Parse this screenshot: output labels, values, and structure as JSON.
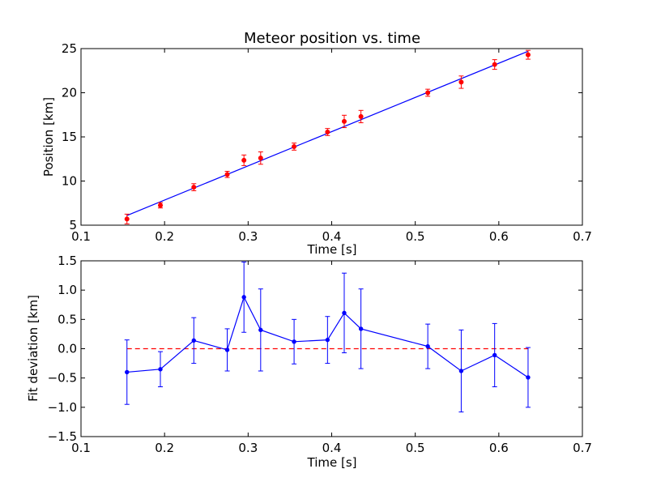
{
  "chart_data": [
    {
      "type": "scatter",
      "title": "Meteor position vs. time",
      "xlabel": "Time [s]",
      "ylabel": "Position [km]",
      "xlim": [
        0.1,
        0.7
      ],
      "ylim": [
        5,
        25
      ],
      "xticks": [
        "0.1",
        "0.2",
        "0.3",
        "0.4",
        "0.5",
        "0.6",
        "0.7"
      ],
      "yticks": [
        "5",
        "10",
        "15",
        "20",
        "25"
      ],
      "grid": false,
      "points": {
        "color": "#ff0000",
        "x": [
          0.155,
          0.195,
          0.235,
          0.275,
          0.295,
          0.315,
          0.355,
          0.395,
          0.415,
          0.435,
          0.515,
          0.555,
          0.595,
          0.635
        ],
        "y": [
          5.7,
          7.25,
          9.3,
          10.75,
          12.35,
          12.6,
          13.9,
          15.55,
          16.75,
          17.3,
          20.0,
          21.2,
          23.2,
          24.3
        ],
        "yerr": [
          0.55,
          0.3,
          0.4,
          0.35,
          0.6,
          0.7,
          0.4,
          0.4,
          0.7,
          0.7,
          0.4,
          0.7,
          0.55,
          0.5
        ]
      },
      "fit_line": {
        "color": "#0000ff",
        "x": [
          0.155,
          0.635
        ],
        "y": [
          6.1,
          24.7
        ]
      }
    },
    {
      "type": "line",
      "title": "",
      "xlabel": "Time [s]",
      "ylabel": "Fit deviation [km]",
      "xlim": [
        0.1,
        0.7
      ],
      "ylim": [
        -1.5,
        1.5
      ],
      "xticks": [
        "0.1",
        "0.2",
        "0.3",
        "0.4",
        "0.5",
        "0.6",
        "0.7"
      ],
      "yticks": [
        "−1.5",
        "−1.0",
        "−0.5",
        "0.0",
        "0.5",
        "1.0",
        "1.5"
      ],
      "grid": false,
      "series": {
        "color": "#0000ff",
        "x": [
          0.155,
          0.195,
          0.235,
          0.275,
          0.295,
          0.315,
          0.355,
          0.395,
          0.415,
          0.435,
          0.515,
          0.555,
          0.595,
          0.635
        ],
        "y": [
          -0.4,
          -0.35,
          0.14,
          -0.02,
          0.88,
          0.32,
          0.12,
          0.15,
          0.61,
          0.34,
          0.04,
          -0.38,
          -0.11,
          -0.49
        ],
        "yerr": [
          0.55,
          0.3,
          0.39,
          0.36,
          0.6,
          0.7,
          0.38,
          0.4,
          0.68,
          0.68,
          0.38,
          0.7,
          0.54,
          0.51
        ]
      },
      "zero_line": {
        "color": "#ff0000",
        "style": "dashed",
        "x": [
          0.155,
          0.635
        ],
        "y": [
          0.0,
          0.0
        ]
      }
    }
  ]
}
